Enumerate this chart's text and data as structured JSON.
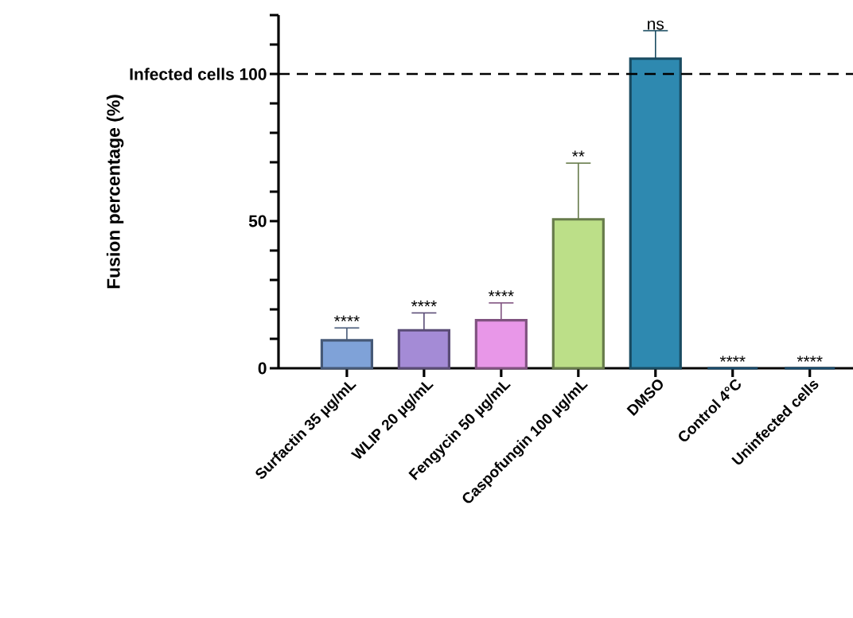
{
  "chart_data": {
    "type": "bar",
    "ylabel": "Fusion percentage (%)",
    "categories": [
      "Surfactin 35 µg/mL",
      "WLIP 20 µg/mL",
      "Fengycin 50 µg/mL",
      "Caspofungin 100 µg/mL",
      "DMSO",
      "Control 4°C",
      "Uninfected cells"
    ],
    "values": [
      9.5,
      12.9,
      16.3,
      50.6,
      105.2,
      0,
      0
    ],
    "errors": [
      [
        9.5,
        13.7
      ],
      [
        12.9,
        18.8
      ],
      [
        16.3,
        22.2
      ],
      [
        50.6,
        69.7
      ],
      [
        105.2,
        114.7
      ],
      null,
      null
    ],
    "colors": [
      "#7fa2d8",
      "#a48bd6",
      "#e897e8",
      "#bcdf88",
      "#2e89b0",
      "#1a4a6a",
      "#1a4a6a"
    ],
    "ylim": [
      0,
      120
    ],
    "yticks": [
      0,
      {
        "value": 10,
        "label": null
      },
      {
        "value": 20,
        "label": null
      },
      {
        "value": 30,
        "label": null
      },
      {
        "value": 40,
        "label": null
      },
      50,
      {
        "value": 60,
        "label": null
      },
      {
        "value": 70,
        "label": null
      },
      {
        "value": 80,
        "label": null
      },
      {
        "value": 90,
        "label": null
      },
      {
        "value": 100,
        "label": "Infected cells 100"
      },
      {
        "value": 110,
        "label": null
      },
      {
        "value": 120,
        "label": null
      }
    ],
    "ref_lines": [
      {
        "axis": "y",
        "value": 100,
        "line_style": "dashed",
        "color": "#000000"
      }
    ],
    "annotations": [
      {
        "text": "****",
        "x": "Surfactin 35 µg/mL",
        "y": 13.7
      },
      {
        "text": "****",
        "x": "WLIP 20 µg/mL",
        "y": 18.8
      },
      {
        "text": "****",
        "x": "Fengycin 50 µg/mL",
        "y": 22.2
      },
      {
        "text": "**",
        "x": "Caspofungin 100 µg/mL",
        "y": 69.7
      },
      {
        "text": "ns",
        "x": "DMSO",
        "y": 114.7
      },
      {
        "text": "****",
        "x": "Control 4°C",
        "y": 0
      },
      {
        "text": "****",
        "x": "Uninfected cells",
        "y": 0
      }
    ],
    "grid": false
  }
}
